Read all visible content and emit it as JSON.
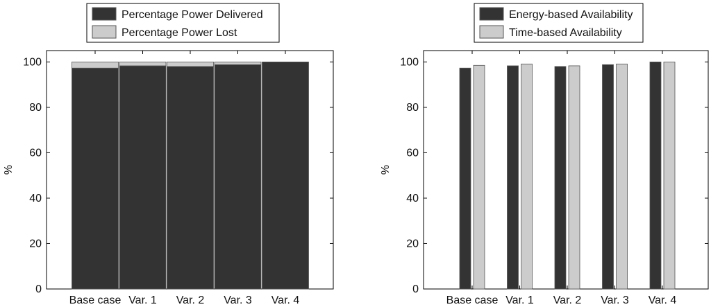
{
  "chart_data": [
    {
      "type": "bar",
      "stacked": true,
      "ylabel": "%",
      "ylim": [
        0,
        105
      ],
      "yticks": [
        "0",
        "20",
        "40",
        "60",
        "80",
        "100"
      ],
      "categories": [
        "Base case",
        "Var. 1",
        "Var. 2",
        "Var. 3",
        "Var. 4"
      ],
      "series": [
        {
          "name": "Percentage Power Delivered",
          "color": "#333333",
          "values": [
            97.3,
            98.3,
            98.0,
            98.8,
            100.0
          ]
        },
        {
          "name": "Percentage Power Lost",
          "color": "#cccccc",
          "values": [
            2.7,
            1.7,
            2.0,
            1.2,
            0.0
          ]
        }
      ],
      "legend": "top"
    },
    {
      "type": "bar",
      "stacked": false,
      "ylabel": "%",
      "ylim": [
        0,
        105
      ],
      "yticks": [
        "0",
        "20",
        "40",
        "60",
        "80",
        "100"
      ],
      "categories": [
        "Base case",
        "Var. 1",
        "Var. 2",
        "Var. 3",
        "Var. 4"
      ],
      "series": [
        {
          "name": "Energy-based Availability",
          "color": "#333333",
          "values": [
            97.3,
            98.3,
            98.0,
            98.8,
            100.0
          ]
        },
        {
          "name": "Time-based Availability",
          "color": "#cccccc",
          "values": [
            98.5,
            99.1,
            98.3,
            99.1,
            100.0
          ]
        }
      ],
      "legend": "top"
    }
  ]
}
